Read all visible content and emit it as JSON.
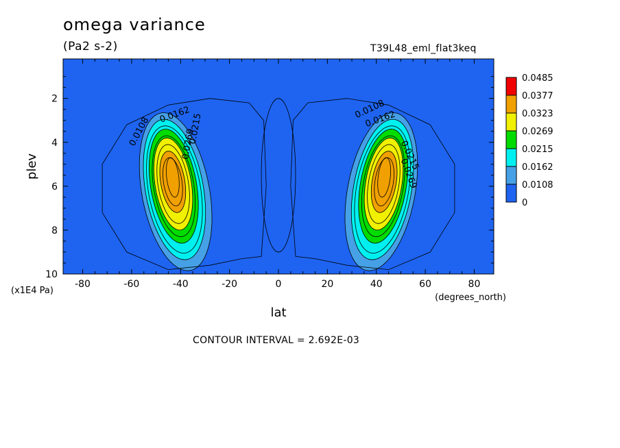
{
  "header": {
    "title": "omega variance",
    "units": "(Pa2 s-2)",
    "run_label": "T39L48_eml_flat3keq"
  },
  "footer": {
    "contour_interval": "CONTOUR INTERVAL = 2.692E-03"
  },
  "chart_data": {
    "type": "contour",
    "title": "omega variance",
    "subtitle": "(Pa2 s-2)",
    "xlabel": "lat",
    "x_units": "(degrees_north)",
    "ylabel": "plev",
    "y_units": "(x1E4 Pa)",
    "xlim": [
      -88,
      88
    ],
    "ylim": [
      10,
      0.2
    ],
    "x_ticks": [
      -80,
      -60,
      -40,
      -20,
      0,
      20,
      40,
      60,
      80
    ],
    "y_ticks": [
      2,
      4,
      6,
      8,
      10
    ],
    "contour_interval": 0.002692,
    "colorbar": {
      "levels": [
        "0",
        "0.0108",
        "0.0162",
        "0.0215",
        "0.0269",
        "0.0323",
        "0.0377",
        "0.0485"
      ],
      "colors": [
        "#1E64F0",
        "#46A0E6",
        "#00F0F0",
        "#00DC00",
        "#F0F000",
        "#F0A000",
        "#F00000"
      ]
    },
    "contour_labels": [
      "0.0108",
      "0.0162",
      "0.0215",
      "0.0269"
    ],
    "maxima": [
      {
        "lat": -42,
        "plev": 5.0,
        "approx_value": 0.0377
      },
      {
        "lat": 42,
        "plev": 5.0,
        "approx_value": 0.0377
      }
    ],
    "minimum": {
      "lat": 0,
      "plev": 5.5,
      "approx_value": 0.0
    }
  }
}
